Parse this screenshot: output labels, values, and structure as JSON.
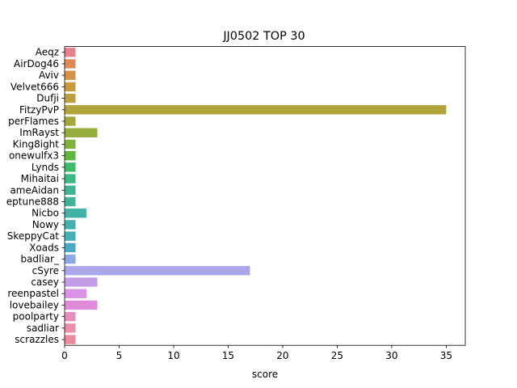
{
  "chart_data": {
    "type": "bar",
    "orientation": "horizontal",
    "title": "JJ0502 TOP 30",
    "xlabel": "score",
    "ylabel": "",
    "xlim": [
      0,
      36.75
    ],
    "xticks": [
      0,
      5,
      10,
      15,
      20,
      25,
      30,
      35
    ],
    "grid": false,
    "categories": [
      "Aeqz",
      "AirDog46",
      "Aviv",
      "Velvet666",
      "Dufji",
      "FitzyPvP",
      "perFlames",
      "ImRayst",
      "King8ight",
      "onewulfx3",
      "Lynds",
      "Mihaitai",
      "ameAidan",
      "eptune888",
      "Nicbo",
      "Nowy",
      "SkeppyCat",
      "Xoads",
      "badliar_",
      "cSyre",
      "casey",
      "reenpastel",
      "lovebailey",
      "poolparty",
      "sadliar",
      "scrazzles"
    ],
    "values": [
      1,
      1,
      1,
      1,
      1,
      35,
      1,
      3,
      1,
      1,
      1,
      1,
      1,
      1,
      2,
      1,
      1,
      1,
      1,
      17,
      3,
      2,
      3,
      1,
      1,
      1
    ],
    "colors": [
      "#e8828c",
      "#de8a5a",
      "#d39248",
      "#c79b3c",
      "#bda03b",
      "#b1a43b",
      "#a4a83b",
      "#94ad3b",
      "#7fb23b",
      "#5ab83c",
      "#3dbb67",
      "#3eb882",
      "#3fb691",
      "#40b49b",
      "#41b2a5",
      "#42b0ae",
      "#44aeb9",
      "#46abc6",
      "#8ba8e8",
      "#a9a6ea",
      "#c39ce6",
      "#d894e3",
      "#e08bd9",
      "#e88ebf",
      "#ed8eab",
      "#ed899a"
    ]
  }
}
